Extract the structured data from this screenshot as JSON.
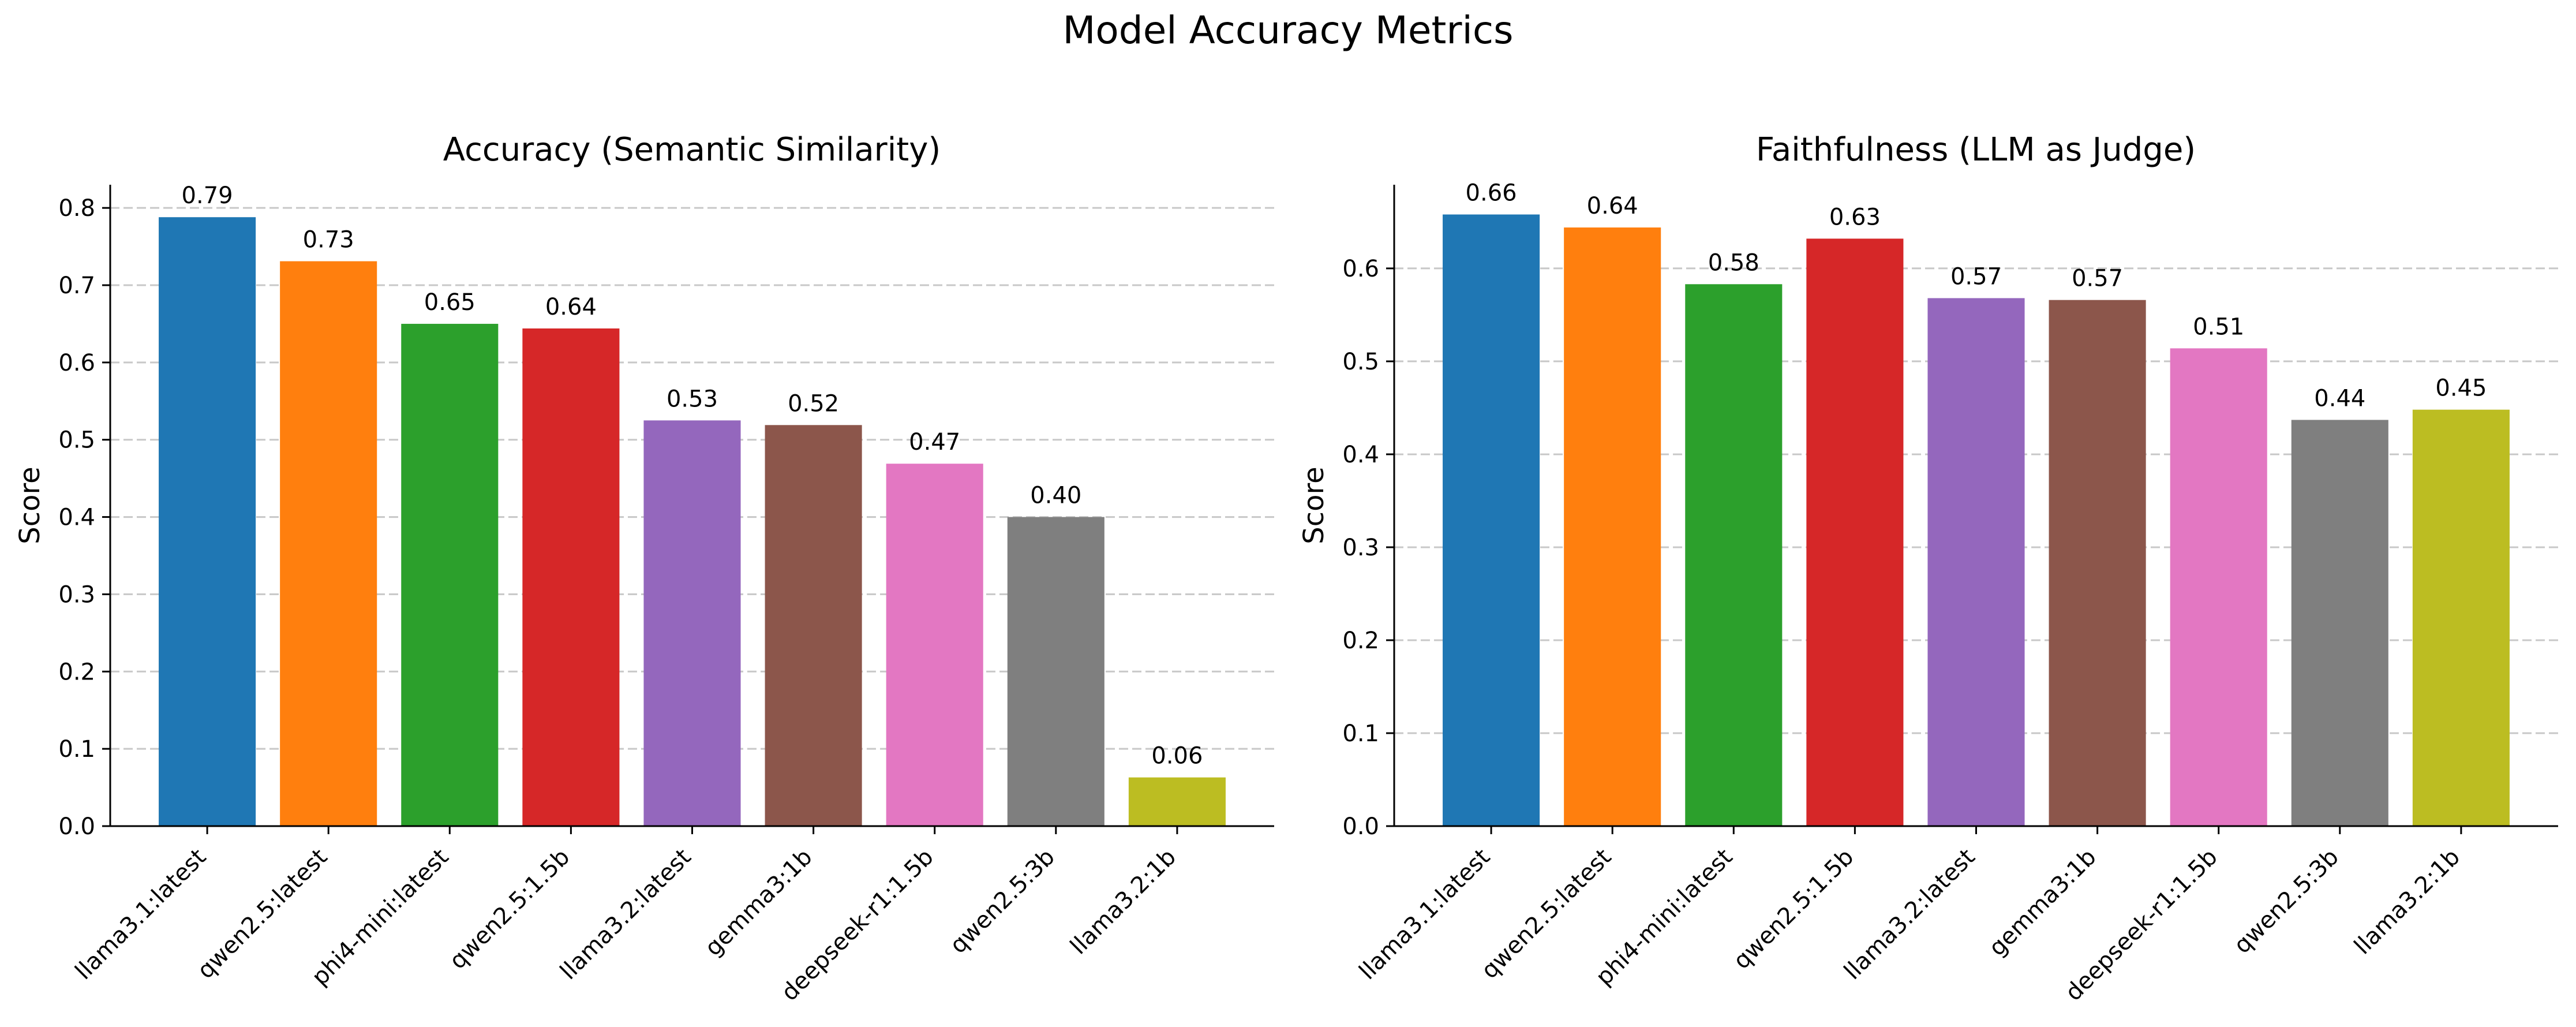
{
  "figure": {
    "title": "Model Accuracy Metrics"
  },
  "chart_data": [
    {
      "type": "bar",
      "title": "Accuracy (Semantic Similarity)",
      "xlabel": "",
      "ylabel": "Score",
      "ylim": [
        0,
        0.83
      ],
      "yticks": [
        "0.0",
        "0.1",
        "0.2",
        "0.3",
        "0.4",
        "0.5",
        "0.6",
        "0.7",
        "0.8"
      ],
      "grid": "y-dashed",
      "categories": [
        "llama3.1:latest",
        "qwen2.5:latest",
        "phi4-mini:latest",
        "qwen2.5:1.5b",
        "llama3.2:latest",
        "gemma3:1b",
        "deepseek-r1:1.5b",
        "qwen2.5:3b",
        "llama3.2:1b"
      ],
      "values": [
        0.788,
        0.731,
        0.65,
        0.644,
        0.525,
        0.519,
        0.469,
        0.4,
        0.063
      ],
      "value_labels": [
        "0.79",
        "0.73",
        "0.65",
        "0.64",
        "0.53",
        "0.52",
        "0.47",
        "0.40",
        "0.06"
      ],
      "colors": [
        "#1f77b4",
        "#ff7f0e",
        "#2ca02c",
        "#d62728",
        "#9467bd",
        "#8c564b",
        "#e377c2",
        "#7f7f7f",
        "#bcbd22"
      ]
    },
    {
      "type": "bar",
      "title": "Faithfulness (LLM as Judge)",
      "xlabel": "",
      "ylabel": "Score",
      "ylim": [
        0,
        0.69
      ],
      "yticks": [
        "0.0",
        "0.1",
        "0.2",
        "0.3",
        "0.4",
        "0.5",
        "0.6"
      ],
      "grid": "y-dashed",
      "categories": [
        "llama3.1:latest",
        "qwen2.5:latest",
        "phi4-mini:latest",
        "qwen2.5:1.5b",
        "llama3.2:latest",
        "gemma3:1b",
        "deepseek-r1:1.5b",
        "qwen2.5:3b",
        "llama3.2:1b"
      ],
      "values": [
        0.658,
        0.644,
        0.583,
        0.632,
        0.568,
        0.566,
        0.514,
        0.437,
        0.448
      ],
      "value_labels": [
        "0.66",
        "0.64",
        "0.58",
        "0.63",
        "0.57",
        "0.57",
        "0.51",
        "0.44",
        "0.45"
      ],
      "colors": [
        "#1f77b4",
        "#ff7f0e",
        "#2ca02c",
        "#d62728",
        "#9467bd",
        "#8c564b",
        "#e377c2",
        "#7f7f7f",
        "#bcbd22"
      ]
    }
  ]
}
